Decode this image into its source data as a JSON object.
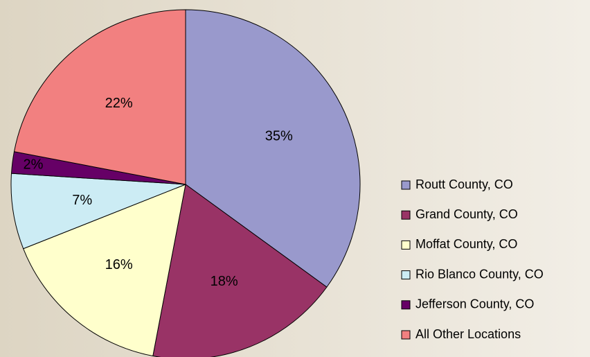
{
  "chart_data": {
    "type": "pie",
    "categories": [
      "Routt County, CO",
      "Grand County, CO",
      "Moffat County, CO",
      "Rio Blanco County, CO",
      "Jefferson County, CO",
      "All Other Locations"
    ],
    "values": [
      35,
      18,
      16,
      7,
      2,
      22
    ],
    "value_labels": [
      "35%",
      "18%",
      "16%",
      "7%",
      "2%",
      "22%"
    ],
    "colors": [
      "#9999cc",
      "#993366",
      "#ffffcc",
      "#ccecf4",
      "#660066",
      "#f28080"
    ]
  }
}
